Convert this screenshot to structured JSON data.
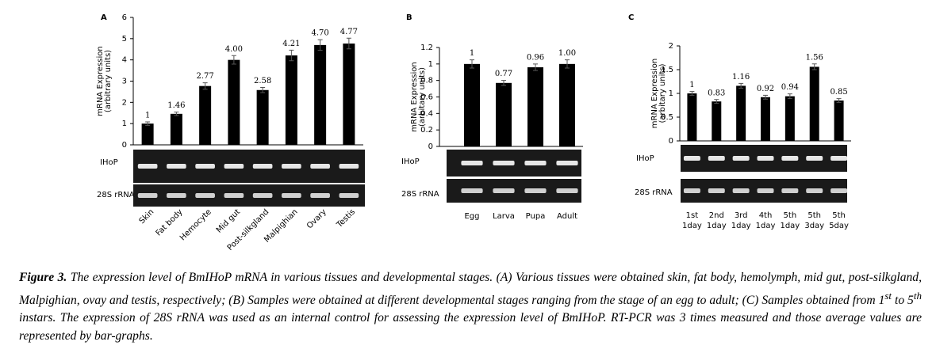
{
  "chart_data": [
    {
      "type": "bar",
      "panel": "A",
      "gel_labels": [
        "IHoP",
        "28S rRNA"
      ],
      "ylabel": [
        "mRNA Expression",
        "(arbitrary units)"
      ],
      "categories": [
        "Skin",
        "Fat body",
        "Hemocyte",
        "Mid gut",
        "Post-silkgland",
        "Malpighian",
        "Ovary",
        "Testis"
      ],
      "values": [
        1,
        1.46,
        2.77,
        4.0,
        2.58,
        4.21,
        4.7,
        4.77
      ],
      "value_labels": [
        "1",
        "1.46",
        "2.77",
        "4.00",
        "2.58",
        "4.21",
        "4.70",
        "4.77"
      ],
      "errors": [
        0.08,
        0.08,
        0.15,
        0.2,
        0.12,
        0.25,
        0.25,
        0.25
      ],
      "color": "#000000",
      "ylim": [
        0,
        6
      ],
      "yticks": [
        0,
        1,
        2,
        3,
        4,
        5,
        6
      ],
      "grid": false
    },
    {
      "type": "bar",
      "panel": "B",
      "gel_labels": [
        "IHoP",
        "28S rRNA"
      ],
      "ylabel": [
        "mRNA Expression",
        "(arbitary units)"
      ],
      "categories": [
        "Egg",
        "Larva",
        "Pupa",
        "Adult"
      ],
      "values": [
        1,
        0.77,
        0.96,
        1.0
      ],
      "value_labels": [
        "1",
        "0.77",
        "0.96",
        "1.00"
      ],
      "errors": [
        0.05,
        0.03,
        0.04,
        0.05
      ],
      "color": "#000000",
      "ylim": [
        0,
        1.2
      ],
      "yticks": [
        0,
        0.2,
        0.4,
        0.6,
        0.8,
        1,
        1.2
      ],
      "grid": false
    },
    {
      "type": "bar",
      "panel": "C",
      "gel_labels": [
        "IHoP",
        "28S rRNA"
      ],
      "ylabel": [
        "mRNA Expression",
        "(arbitary units)"
      ],
      "categories": [
        [
          "1st",
          "1day"
        ],
        [
          "2nd",
          "1day"
        ],
        [
          "3rd",
          "1day"
        ],
        [
          "4th",
          "1day"
        ],
        [
          "5th",
          "1day"
        ],
        [
          "5th",
          "3day"
        ],
        [
          "5th",
          "5day"
        ]
      ],
      "values": [
        1,
        0.83,
        1.16,
        0.92,
        0.94,
        1.56,
        0.85
      ],
      "errors": [
        0.04,
        0.04,
        0.05,
        0.04,
        0.05,
        0.06,
        0.04
      ],
      "color": "#000000",
      "ylim": [
        0,
        2
      ],
      "yticks": [
        0,
        0.5,
        1,
        1.5,
        2
      ],
      "grid": false
    }
  ],
  "caption": {
    "label": "Figure 3.",
    "parts": [
      "The expression level of BmIHoP mRNA in various tissues and developmental stages. (A) Various tissues were obtained skin, fat body, hemolymph, mid gut, post-silkgland, Malpighian, ovay and testis, respectively; (B) Samples were obtained at different developmental stages ranging from the stage of an egg to adult; (C) Samples obtained from 1",
      "st",
      " to 5",
      "th",
      " instars. The expression of 28S rRNA was used as an internal control for assessing the expression level of BmIHoP. RT-PCR was 3 times measured and those average values are represented by bar-graphs."
    ]
  }
}
